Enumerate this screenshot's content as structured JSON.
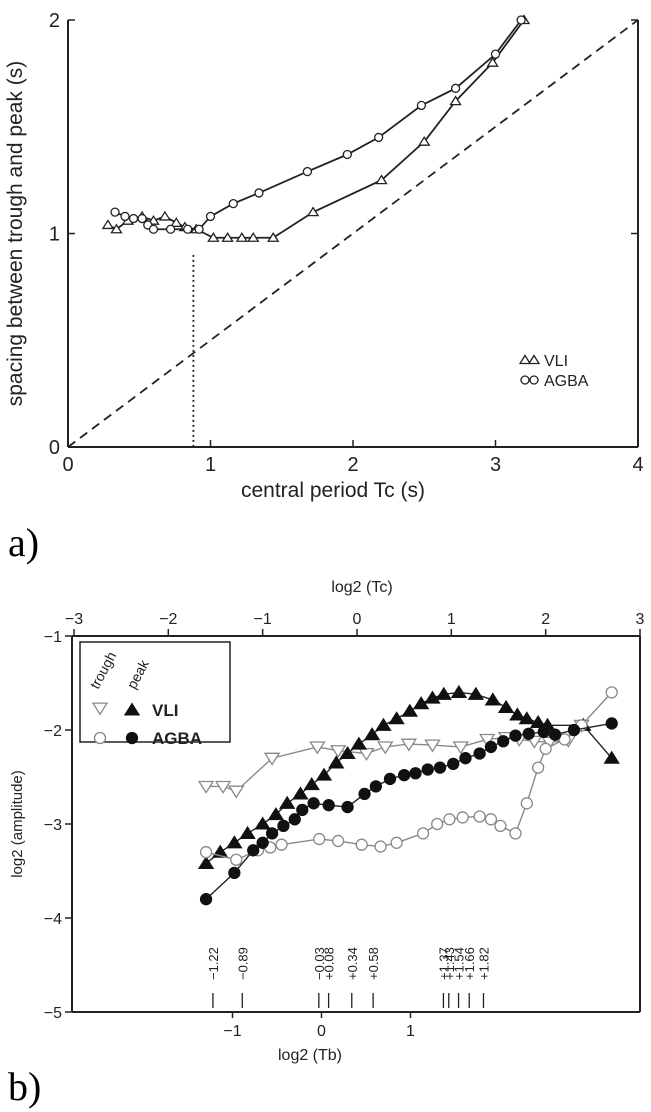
{
  "chart_data": [
    {
      "panel": "a)",
      "type": "line",
      "xlabel": "central period Tc (s)",
      "ylabel": "spacing between trough and peak (s)",
      "xlim": [
        0,
        4
      ],
      "ylim": [
        0,
        2
      ],
      "xticks": [
        "0",
        "1",
        "2",
        "3",
        "4"
      ],
      "yticks": [
        "0",
        "1",
        "2"
      ],
      "legend_position": "bottom-right",
      "vline_x": 0.88,
      "series": [
        {
          "name": "VLI",
          "marker": "triangle",
          "points": [
            [
              0.28,
              1.04
            ],
            [
              0.34,
              1.02
            ],
            [
              0.42,
              1.06
            ],
            [
              0.52,
              1.08
            ],
            [
              0.6,
              1.06
            ],
            [
              0.68,
              1.08
            ],
            [
              0.76,
              1.05
            ],
            [
              0.82,
              1.03
            ],
            [
              0.9,
              1.02
            ],
            [
              1.02,
              0.98
            ],
            [
              1.12,
              0.98
            ],
            [
              1.22,
              0.98
            ],
            [
              1.3,
              0.98
            ],
            [
              1.44,
              0.98
            ],
            [
              1.72,
              1.1
            ],
            [
              2.2,
              1.25
            ],
            [
              2.5,
              1.43
            ],
            [
              2.72,
              1.62
            ],
            [
              2.98,
              1.8
            ],
            [
              3.2,
              2.0
            ],
            [
              3.25,
              2.03
            ]
          ]
        },
        {
          "name": "AGBA",
          "marker": "circle",
          "points": [
            [
              0.33,
              1.1
            ],
            [
              0.4,
              1.08
            ],
            [
              0.46,
              1.07
            ],
            [
              0.52,
              1.07
            ],
            [
              0.56,
              1.04
            ],
            [
              0.6,
              1.02
            ],
            [
              0.72,
              1.02
            ],
            [
              0.84,
              1.02
            ],
            [
              0.92,
              1.02
            ],
            [
              1.0,
              1.08
            ],
            [
              1.16,
              1.14
            ],
            [
              1.34,
              1.19
            ],
            [
              1.68,
              1.29
            ],
            [
              1.96,
              1.37
            ],
            [
              2.18,
              1.45
            ],
            [
              2.48,
              1.6
            ],
            [
              2.72,
              1.68
            ],
            [
              3.0,
              1.84
            ],
            [
              3.18,
              2.0
            ],
            [
              3.3,
              2.05
            ]
          ]
        }
      ],
      "reference_line": {
        "style": "dashed",
        "points": [
          [
            0,
            0.0
          ],
          [
            4,
            2.0
          ]
        ]
      }
    },
    {
      "panel": "b)",
      "type": "line",
      "top_xlabel": "log2 (Tc)",
      "top_xlim": [
        -3,
        3
      ],
      "top_xticks": [
        "-3",
        "-2",
        "-1",
        "0",
        "1",
        "2",
        "3"
      ],
      "xlabel": "log2 (Tb)",
      "xticks": [
        "-1",
        "0",
        "1"
      ],
      "ylabel": "log2 (amplitude)",
      "ylim": [
        -5,
        -1
      ],
      "yticks": [
        "-1",
        "-2",
        "-3",
        "-4",
        "-5"
      ],
      "legend_position": "top-left",
      "legend_headers": [
        "trough",
        "peak"
      ],
      "legend_labels": [
        "VLI",
        "AGBA"
      ],
      "tb_annotations": [
        "−1.22",
        "−0.89",
        "−0.03",
        "+0.08",
        "+0.34",
        "+0.58",
        "+1.37",
        "+1.43",
        "+1.54",
        "+1.66",
        "+1.82"
      ],
      "series": [
        {
          "name": "VLI",
          "type": "trough",
          "marker": "triangle-down-open",
          "points": [
            [
              -1.6,
              -2.6
            ],
            [
              -1.42,
              -2.6
            ],
            [
              -1.28,
              -2.65
            ],
            [
              -0.9,
              -2.3
            ],
            [
              -0.42,
              -2.18
            ],
            [
              -0.2,
              -2.22
            ],
            [
              0.1,
              -2.25
            ],
            [
              0.3,
              -2.18
            ],
            [
              0.55,
              -2.15
            ],
            [
              0.8,
              -2.16
            ],
            [
              1.1,
              -2.18
            ],
            [
              1.38,
              -2.1
            ],
            [
              1.58,
              -2.08
            ],
            [
              1.72,
              -2.1
            ],
            [
              1.88,
              -2.12
            ],
            [
              2.04,
              -2.13
            ],
            [
              2.24,
              -2.11
            ],
            [
              2.38,
              -1.95
            ]
          ]
        },
        {
          "name": "VLI",
          "type": "peak",
          "marker": "triangle-up-filled",
          "points": [
            [
              -1.6,
              -3.42
            ],
            [
              -1.45,
              -3.3
            ],
            [
              -1.3,
              -3.2
            ],
            [
              -1.16,
              -3.1
            ],
            [
              -1.0,
              -3.0
            ],
            [
              -0.86,
              -2.9
            ],
            [
              -0.74,
              -2.78
            ],
            [
              -0.6,
              -2.68
            ],
            [
              -0.48,
              -2.58
            ],
            [
              -0.35,
              -2.48
            ],
            [
              -0.22,
              -2.35
            ],
            [
              -0.1,
              -2.25
            ],
            [
              0.02,
              -2.15
            ],
            [
              0.16,
              -2.05
            ],
            [
              0.28,
              -1.95
            ],
            [
              0.42,
              -1.88
            ],
            [
              0.56,
              -1.8
            ],
            [
              0.68,
              -1.72
            ],
            [
              0.8,
              -1.66
            ],
            [
              0.92,
              -1.62
            ],
            [
              1.08,
              -1.6
            ],
            [
              1.26,
              -1.62
            ],
            [
              1.44,
              -1.68
            ],
            [
              1.58,
              -1.76
            ],
            [
              1.7,
              -1.84
            ],
            [
              1.8,
              -1.88
            ],
            [
              1.92,
              -1.92
            ],
            [
              2.02,
              -1.95
            ],
            [
              2.4,
              -1.95
            ],
            [
              2.7,
              -2.3
            ]
          ]
        },
        {
          "name": "AGBA",
          "type": "trough",
          "marker": "circle-open",
          "points": [
            [
              -1.6,
              -3.3
            ],
            [
              -1.28,
              -3.38
            ],
            [
              -1.05,
              -3.28
            ],
            [
              -0.92,
              -3.25
            ],
            [
              -0.8,
              -3.22
            ],
            [
              -0.4,
              -3.16
            ],
            [
              -0.2,
              -3.18
            ],
            [
              0.05,
              -3.22
            ],
            [
              0.25,
              -3.24
            ],
            [
              0.42,
              -3.2
            ],
            [
              0.7,
              -3.1
            ],
            [
              0.85,
              -3.0
            ],
            [
              0.98,
              -2.95
            ],
            [
              1.12,
              -2.93
            ],
            [
              1.3,
              -2.92
            ],
            [
              1.42,
              -2.95
            ],
            [
              1.52,
              -3.02
            ],
            [
              1.68,
              -3.1
            ],
            [
              1.8,
              -2.78
            ],
            [
              1.92,
              -2.4
            ],
            [
              2.0,
              -2.2
            ],
            [
              2.2,
              -2.1
            ],
            [
              2.38,
              -1.95
            ],
            [
              2.7,
              -1.6
            ]
          ]
        },
        {
          "name": "AGBA",
          "type": "peak",
          "marker": "circle-filled",
          "points": [
            [
              -1.6,
              -3.8
            ],
            [
              -1.3,
              -3.52
            ],
            [
              -1.1,
              -3.28
            ],
            [
              -1.0,
              -3.2
            ],
            [
              -0.9,
              -3.1
            ],
            [
              -0.78,
              -3.02
            ],
            [
              -0.66,
              -2.95
            ],
            [
              -0.58,
              -2.85
            ],
            [
              -0.46,
              -2.78
            ],
            [
              -0.3,
              -2.8
            ],
            [
              -0.1,
              -2.82
            ],
            [
              0.08,
              -2.68
            ],
            [
              0.2,
              -2.6
            ],
            [
              0.35,
              -2.52
            ],
            [
              0.5,
              -2.48
            ],
            [
              0.62,
              -2.46
            ],
            [
              0.75,
              -2.42
            ],
            [
              0.88,
              -2.4
            ],
            [
              1.02,
              -2.36
            ],
            [
              1.15,
              -2.3
            ],
            [
              1.3,
              -2.25
            ],
            [
              1.42,
              -2.18
            ],
            [
              1.55,
              -2.12
            ],
            [
              1.68,
              -2.06
            ],
            [
              1.82,
              -2.04
            ],
            [
              1.98,
              -2.02
            ],
            [
              2.1,
              -2.05
            ],
            [
              2.3,
              -2.0
            ],
            [
              2.7,
              -1.93
            ]
          ]
        }
      ]
    }
  ],
  "colors": {
    "axis": "#222222",
    "line": "#222222",
    "open_marker_stroke": "#888888"
  }
}
